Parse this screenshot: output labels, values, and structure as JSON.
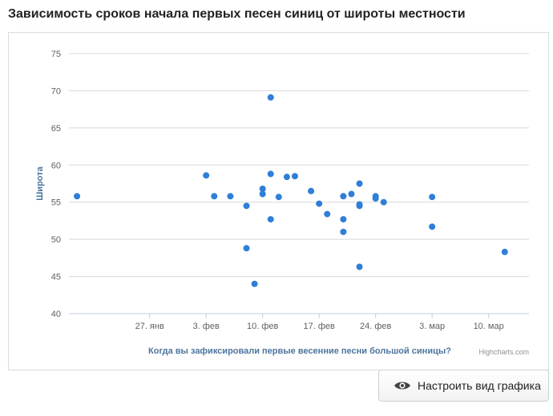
{
  "page": {
    "title": "Зависимость сроков начала первых песен синиц от широты местности"
  },
  "button": {
    "configure_label": "Настроить вид графика",
    "icon": "eye-icon"
  },
  "chart_data": {
    "type": "scatter",
    "title": "",
    "xlabel": "Когда вы зафиксировали первые весенние песни большой синицы?",
    "ylabel": "Широта",
    "credits": "Highcharts.com",
    "x_type": "date",
    "year": 2014,
    "xlim": [
      "2014-01-17",
      "2014-03-15"
    ],
    "ylim": [
      40,
      75
    ],
    "y_ticks": [
      40,
      45,
      50,
      55,
      60,
      65,
      70,
      75
    ],
    "x_ticks": [
      {
        "date": "2014-01-27",
        "label": "27. янв"
      },
      {
        "date": "2014-02-03",
        "label": "3. фев"
      },
      {
        "date": "2014-02-10",
        "label": "10. фев"
      },
      {
        "date": "2014-02-17",
        "label": "17. фев"
      },
      {
        "date": "2014-02-24",
        "label": "24. фев"
      },
      {
        "date": "2014-03-03",
        "label": "3. мар"
      },
      {
        "date": "2014-03-10",
        "label": "10. мар"
      }
    ],
    "grid": true,
    "legend": "none",
    "marker_color": "#2f7ed8",
    "points": [
      {
        "x": "2014-01-18",
        "y": 55.8
      },
      {
        "x": "2014-02-03",
        "y": 58.6
      },
      {
        "x": "2014-02-04",
        "y": 55.8
      },
      {
        "x": "2014-02-06",
        "y": 55.8
      },
      {
        "x": "2014-02-08",
        "y": 54.5
      },
      {
        "x": "2014-02-08",
        "y": 48.8
      },
      {
        "x": "2014-02-09",
        "y": 44.0
      },
      {
        "x": "2014-02-10",
        "y": 56.8
      },
      {
        "x": "2014-02-10",
        "y": 56.1
      },
      {
        "x": "2014-02-11",
        "y": 69.1
      },
      {
        "x": "2014-02-11",
        "y": 58.8
      },
      {
        "x": "2014-02-11",
        "y": 52.7
      },
      {
        "x": "2014-02-12",
        "y": 55.7
      },
      {
        "x": "2014-02-13",
        "y": 58.4
      },
      {
        "x": "2014-02-14",
        "y": 58.5
      },
      {
        "x": "2014-02-16",
        "y": 56.5
      },
      {
        "x": "2014-02-17",
        "y": 54.8
      },
      {
        "x": "2014-02-18",
        "y": 53.4
      },
      {
        "x": "2014-02-20",
        "y": 55.8
      },
      {
        "x": "2014-02-20",
        "y": 52.7
      },
      {
        "x": "2014-02-20",
        "y": 51.0
      },
      {
        "x": "2014-02-21",
        "y": 56.1
      },
      {
        "x": "2014-02-22",
        "y": 57.5
      },
      {
        "x": "2014-02-22",
        "y": 54.7
      },
      {
        "x": "2014-02-22",
        "y": 54.5
      },
      {
        "x": "2014-02-22",
        "y": 46.3
      },
      {
        "x": "2014-02-24",
        "y": 55.8
      },
      {
        "x": "2014-02-24",
        "y": 55.5
      },
      {
        "x": "2014-02-25",
        "y": 55.0
      },
      {
        "x": "2014-03-03",
        "y": 55.7
      },
      {
        "x": "2014-03-03",
        "y": 51.7
      },
      {
        "x": "2014-03-12",
        "y": 48.3
      }
    ]
  }
}
